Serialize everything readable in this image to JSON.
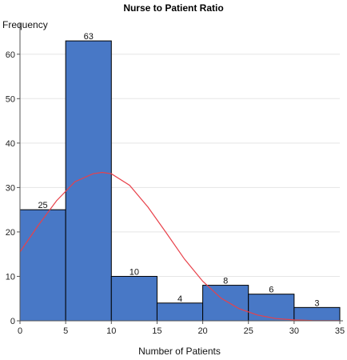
{
  "chart_data": {
    "type": "bar",
    "title": "Nurse to Patient Ratio",
    "xlabel": "Number of Patients",
    "ylabel": "Frequency",
    "bins": [
      {
        "from": 0,
        "to": 5,
        "value": 25
      },
      {
        "from": 5,
        "to": 10,
        "value": 63
      },
      {
        "from": 10,
        "to": 15,
        "value": 10
      },
      {
        "from": 15,
        "to": 20,
        "value": 4
      },
      {
        "from": 20,
        "to": 25,
        "value": 8
      },
      {
        "from": 25,
        "to": 30,
        "value": 6
      },
      {
        "from": 30,
        "to": 35,
        "value": 3
      }
    ],
    "xlim": [
      0,
      35
    ],
    "ylim": [
      0,
      65
    ],
    "xticks": [
      0,
      5,
      10,
      15,
      20,
      25,
      30,
      35
    ],
    "yticks": [
      0,
      10,
      20,
      30,
      40,
      50,
      60
    ],
    "grid": "horizontal",
    "density_curve": {
      "type": "normal",
      "mean": 9.1,
      "sd": 6.6,
      "points": [
        [
          0,
          15.5
        ],
        [
          2,
          21.5
        ],
        [
          4,
          27.0
        ],
        [
          6,
          31.3
        ],
        [
          8,
          33.1
        ],
        [
          9,
          33.4
        ],
        [
          10,
          33.1
        ],
        [
          12,
          30.5
        ],
        [
          14,
          25.6
        ],
        [
          16,
          19.8
        ],
        [
          18,
          13.9
        ],
        [
          20,
          8.9
        ],
        [
          22,
          5.1
        ],
        [
          24,
          2.7
        ],
        [
          26,
          1.3
        ],
        [
          28,
          0.5
        ],
        [
          30,
          0.2
        ],
        [
          32,
          0.05
        ],
        [
          35,
          0.01
        ]
      ]
    },
    "colors": {
      "bar_fill": "#4878c6",
      "bar_stroke": "#000000",
      "curve": "#e8414a",
      "gridline": "#e5e5e5"
    }
  }
}
